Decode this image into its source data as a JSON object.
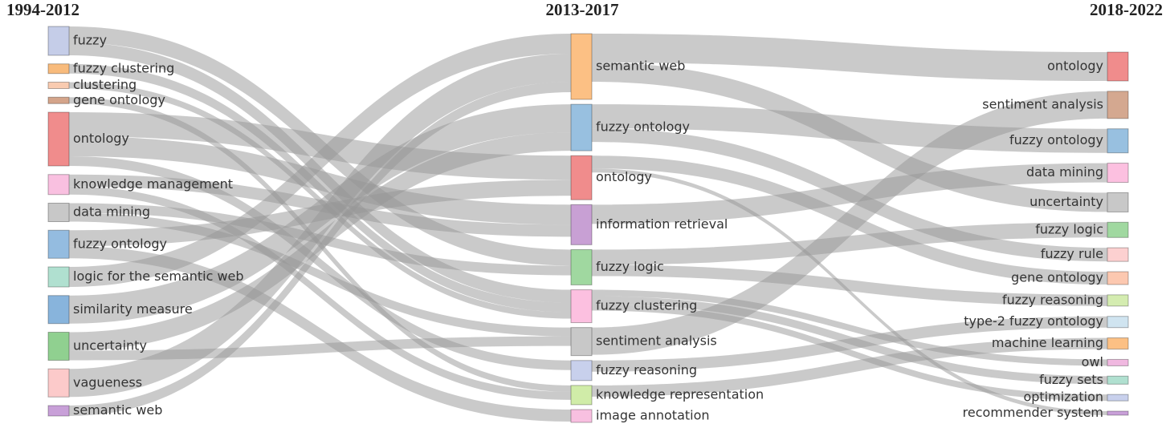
{
  "chart_data": {
    "type": "sankey",
    "columns": [
      {
        "title": "1994-2012",
        "nodes": [
          {
            "name": "fuzzy",
            "color": "#c5cde8",
            "value": 36,
            "flows": [
              {
                "to": 4,
                "value": 20
              },
              {
                "to": 5,
                "value": 16
              }
            ]
          },
          {
            "name": "fuzzy clustering",
            "color": "#f8bb7c",
            "value": 12,
            "flows": [
              {
                "to": 5,
                "value": 12
              }
            ]
          },
          {
            "name": "clustering",
            "color": "#f9cbb0",
            "value": 8,
            "flows": [
              {
                "to": 5,
                "value": 8
              }
            ]
          },
          {
            "name": "gene ontology",
            "color": "#d4a48a",
            "value": 8,
            "flows": [
              {
                "to": 8,
                "value": 8
              }
            ]
          },
          {
            "name": "ontology",
            "color": "#f08c8c",
            "value": 67,
            "flows": [
              {
                "to": 2,
                "value": 30
              },
              {
                "to": 3,
                "value": 25
              },
              {
                "to": 7,
                "value": 12
              }
            ]
          },
          {
            "name": "knowledge management",
            "color": "#f9c0e0",
            "value": 25,
            "flows": [
              {
                "to": 3,
                "value": 15
              },
              {
                "to": 8,
                "value": 10
              }
            ]
          },
          {
            "name": "data mining",
            "color": "#c8c8c8",
            "value": 23,
            "flows": [
              {
                "to": 4,
                "value": 12
              },
              {
                "to": 6,
                "value": 11
              }
            ]
          },
          {
            "name": "fuzzy ontology",
            "color": "#94bce0",
            "value": 35,
            "flows": [
              {
                "to": 2,
                "value": 20
              },
              {
                "to": 9,
                "value": 15
              }
            ]
          },
          {
            "name": "logic for the semantic web",
            "color": "#b0e0d0",
            "value": 25,
            "flows": [
              {
                "to": 0,
                "value": 25
              }
            ]
          },
          {
            "name": "similarity measure",
            "color": "#88b4dc",
            "value": 35,
            "flows": [
              {
                "to": 1,
                "value": 35
              }
            ]
          },
          {
            "name": "uncertainty",
            "color": "#90d090",
            "value": 35,
            "flows": [
              {
                "to": 1,
                "value": 23
              },
              {
                "to": 6,
                "value": 12
              }
            ]
          },
          {
            "name": "vagueness",
            "color": "#fccaca",
            "value": 35,
            "flows": [
              {
                "to": 0,
                "value": 35
              }
            ]
          },
          {
            "name": "semantic web",
            "color": "#c8a0d8",
            "value": 13,
            "flows": [
              {
                "to": 0,
                "value": 13
              }
            ]
          }
        ]
      },
      {
        "title": "2013-2017",
        "nodes": [
          {
            "name": "semantic web",
            "color": "#fcc084",
            "value": 82,
            "flows": [
              {
                "to": 0,
                "value": 36
              },
              {
                "to": 4,
                "value": 24
              }
            ]
          },
          {
            "name": "fuzzy ontology",
            "color": "#98c0e0",
            "value": 58,
            "flows": [
              {
                "to": 2,
                "value": 30
              },
              {
                "to": 6,
                "value": 17
              }
            ]
          },
          {
            "name": "ontology",
            "color": "#f08c8c",
            "value": 55,
            "flows": [
              {
                "to": 7,
                "value": 16
              },
              {
                "to": 14,
                "value": 5
              }
            ]
          },
          {
            "name": "information retrieval",
            "color": "#c8a0d4",
            "value": 50,
            "flows": [
              {
                "to": 3,
                "value": 24
              }
            ]
          },
          {
            "name": "fuzzy logic",
            "color": "#a0d8a0",
            "value": 44,
            "flows": [
              {
                "to": 5,
                "value": 19
              },
              {
                "to": 8,
                "value": 14
              }
            ]
          },
          {
            "name": "fuzzy clustering",
            "color": "#fcc0e0",
            "value": 41,
            "flows": [
              {
                "to": 11,
                "value": 8
              },
              {
                "to": 12,
                "value": 10
              },
              {
                "to": 13,
                "value": 8
              }
            ]
          },
          {
            "name": "sentiment analysis",
            "color": "#c8c8c8",
            "value": 35,
            "flows": [
              {
                "to": 1,
                "value": 34
              }
            ]
          },
          {
            "name": "fuzzy reasoning",
            "color": "#c8d0ec",
            "value": 25,
            "flows": [
              {
                "to": 9,
                "value": 14
              }
            ]
          },
          {
            "name": "knowledge representation",
            "color": "#d0eca8",
            "value": 24,
            "flows": [
              {
                "to": 10,
                "value": 14
              }
            ]
          },
          {
            "name": "image annotation",
            "color": "#f8c0e0",
            "value": 16,
            "flows": []
          }
        ]
      },
      {
        "title": "2018-2022",
        "nodes": [
          {
            "name": "ontology",
            "color": "#f08c8c",
            "value": 36
          },
          {
            "name": "sentiment analysis",
            "color": "#d4a890",
            "value": 34
          },
          {
            "name": "fuzzy ontology",
            "color": "#98c0e0",
            "value": 30
          },
          {
            "name": "data mining",
            "color": "#fcc0e0",
            "value": 24
          },
          {
            "name": "uncertainty",
            "color": "#c8c8c8",
            "value": 24
          },
          {
            "name": "fuzzy logic",
            "color": "#a0d8a0",
            "value": 19
          },
          {
            "name": "fuzzy rule",
            "color": "#fcd0d0",
            "value": 17
          },
          {
            "name": "gene ontology",
            "color": "#fcc8b0",
            "value": 16
          },
          {
            "name": "fuzzy reasoning",
            "color": "#d4ecb0",
            "value": 14
          },
          {
            "name": "type-2 fuzzy ontology",
            "color": "#d0e4f0",
            "value": 14
          },
          {
            "name": "machine learning",
            "color": "#fcc084",
            "value": 14
          },
          {
            "name": "owl",
            "color": "#f0b8e0",
            "value": 8
          },
          {
            "name": "fuzzy sets",
            "color": "#b0e0d0",
            "value": 10
          },
          {
            "name": "optimization",
            "color": "#c8d0ec",
            "value": 8
          },
          {
            "name": "recommender system",
            "color": "#c8a0d8",
            "value": 5
          }
        ]
      }
    ]
  }
}
